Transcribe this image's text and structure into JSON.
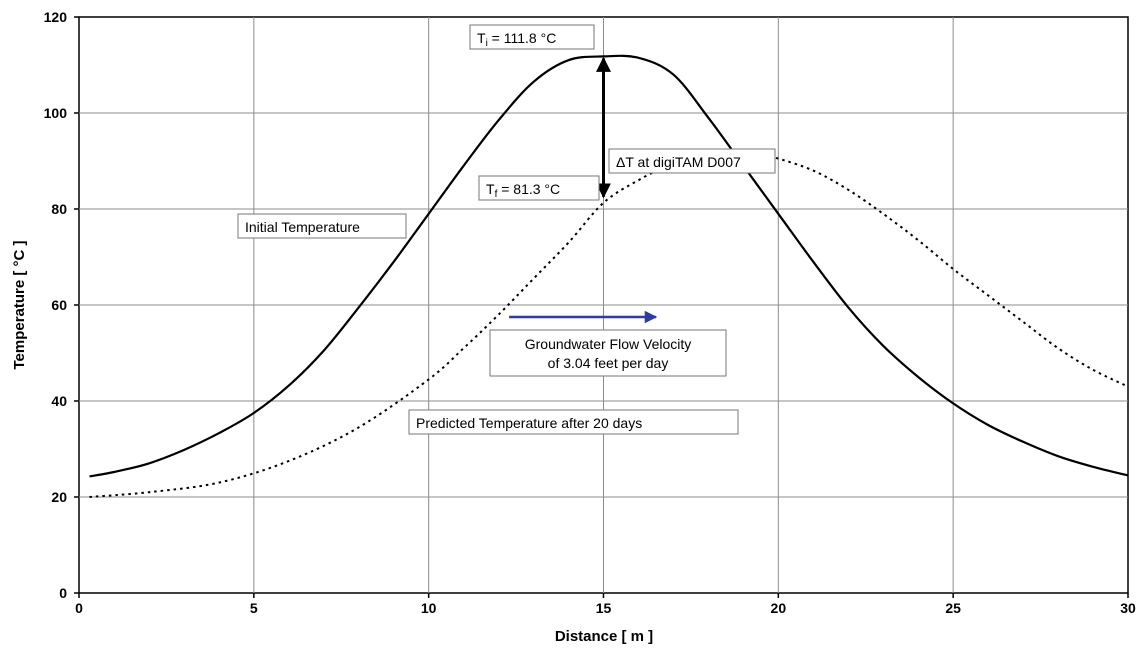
{
  "chart_data": {
    "type": "line",
    "xlabel": "Distance [ m ]",
    "ylabel": "Temperature [ °C ]",
    "xlim": [
      0,
      30
    ],
    "ylim": [
      0,
      120
    ],
    "x_ticks": [
      "0",
      "5",
      "10",
      "15",
      "20",
      "25",
      "30"
    ],
    "y_ticks": [
      "0",
      "20",
      "40",
      "60",
      "80",
      "100",
      "120"
    ],
    "grid": true,
    "series": [
      {
        "style": "solid",
        "color": "#000000",
        "x": [
          0.3,
          1,
          2,
          3,
          4,
          5,
          6,
          7,
          8,
          9,
          10,
          11,
          12,
          13,
          14,
          15,
          16,
          17,
          18,
          19,
          20,
          21,
          22,
          23,
          24,
          25,
          26,
          27,
          28,
          29,
          30
        ],
        "y": [
          24.3,
          25.2,
          27.0,
          29.8,
          33.3,
          37.5,
          43.2,
          50.5,
          59.5,
          69.0,
          79.0,
          89.0,
          98.5,
          106.5,
          111.0,
          111.8,
          111.5,
          108.0,
          99.0,
          89.0,
          79.0,
          69.0,
          59.5,
          51.5,
          45.0,
          39.5,
          35.0,
          31.5,
          28.5,
          26.3,
          24.5
        ]
      },
      {
        "style": "dotted",
        "color": "#000000",
        "x": [
          0.3,
          2,
          4,
          6,
          8,
          10,
          11,
          12,
          13,
          14,
          15,
          16,
          17,
          18,
          18.8,
          19.5,
          20,
          21,
          22,
          23,
          24,
          25,
          26,
          27,
          28,
          29,
          30
        ],
        "y": [
          20.0,
          21.0,
          23.0,
          27.5,
          34.5,
          44.5,
          51.0,
          58.0,
          65.5,
          73.0,
          81.3,
          86.0,
          89.5,
          91.3,
          91.5,
          91.3,
          90.5,
          88.0,
          84.0,
          79.0,
          73.5,
          67.5,
          62.0,
          56.5,
          51.0,
          46.5,
          43.0
        ]
      }
    ],
    "annotations": {
      "ti": {
        "main": "T",
        "sub": "i",
        "rest": " = 111.8 °C"
      },
      "tf": {
        "main": "T",
        "sub": "f",
        "rest": " = 81.3 °C"
      },
      "delta": "ΔT at digiTAM D007",
      "initial": "Initial Temperature",
      "flow_line1": "Groundwater Flow Velocity",
      "flow_line2": "of 3.04 feet per day",
      "predicted": "Predicted Temperature after 20 days"
    },
    "delta_arrow": {
      "x": 15,
      "y_from": 81.3,
      "y_to": 111.8,
      "color": "#000000"
    },
    "flow_arrow": {
      "x_from": 12.3,
      "x_to": 16.5,
      "y": 57.5,
      "color": "#2b3d9e"
    }
  }
}
